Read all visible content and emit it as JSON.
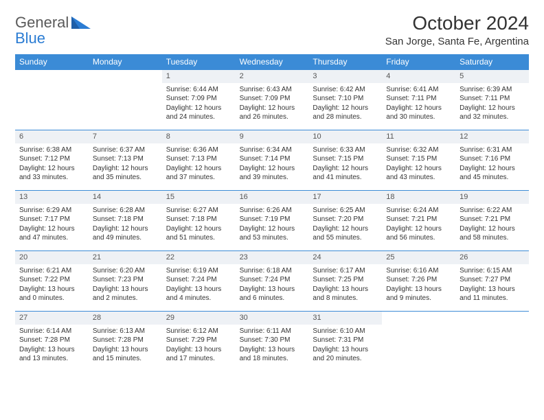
{
  "brand": {
    "word1": "General",
    "word2": "Blue"
  },
  "title": "October 2024",
  "location": "San Jorge, Santa Fe, Argentina",
  "colors": {
    "header_bg": "#3b8bd6",
    "header_fg": "#ffffff",
    "daynum_bg": "#eef1f5",
    "border": "#3b8bd6",
    "logo_gray": "#5a5a5a",
    "logo_blue": "#2b7cd3"
  },
  "layout": {
    "columns": 7
  },
  "day_names": [
    "Sunday",
    "Monday",
    "Tuesday",
    "Wednesday",
    "Thursday",
    "Friday",
    "Saturday"
  ],
  "weeks": [
    [
      {
        "blank": true
      },
      {
        "blank": true
      },
      {
        "n": "1",
        "sunrise": "6:44 AM",
        "sunset": "7:09 PM",
        "dayl1": "Daylight: 12 hours",
        "dayl2": "and 24 minutes."
      },
      {
        "n": "2",
        "sunrise": "6:43 AM",
        "sunset": "7:09 PM",
        "dayl1": "Daylight: 12 hours",
        "dayl2": "and 26 minutes."
      },
      {
        "n": "3",
        "sunrise": "6:42 AM",
        "sunset": "7:10 PM",
        "dayl1": "Daylight: 12 hours",
        "dayl2": "and 28 minutes."
      },
      {
        "n": "4",
        "sunrise": "6:41 AM",
        "sunset": "7:11 PM",
        "dayl1": "Daylight: 12 hours",
        "dayl2": "and 30 minutes."
      },
      {
        "n": "5",
        "sunrise": "6:39 AM",
        "sunset": "7:11 PM",
        "dayl1": "Daylight: 12 hours",
        "dayl2": "and 32 minutes."
      }
    ],
    [
      {
        "n": "6",
        "sunrise": "6:38 AM",
        "sunset": "7:12 PM",
        "dayl1": "Daylight: 12 hours",
        "dayl2": "and 33 minutes."
      },
      {
        "n": "7",
        "sunrise": "6:37 AM",
        "sunset": "7:13 PM",
        "dayl1": "Daylight: 12 hours",
        "dayl2": "and 35 minutes."
      },
      {
        "n": "8",
        "sunrise": "6:36 AM",
        "sunset": "7:13 PM",
        "dayl1": "Daylight: 12 hours",
        "dayl2": "and 37 minutes."
      },
      {
        "n": "9",
        "sunrise": "6:34 AM",
        "sunset": "7:14 PM",
        "dayl1": "Daylight: 12 hours",
        "dayl2": "and 39 minutes."
      },
      {
        "n": "10",
        "sunrise": "6:33 AM",
        "sunset": "7:15 PM",
        "dayl1": "Daylight: 12 hours",
        "dayl2": "and 41 minutes."
      },
      {
        "n": "11",
        "sunrise": "6:32 AM",
        "sunset": "7:15 PM",
        "dayl1": "Daylight: 12 hours",
        "dayl2": "and 43 minutes."
      },
      {
        "n": "12",
        "sunrise": "6:31 AM",
        "sunset": "7:16 PM",
        "dayl1": "Daylight: 12 hours",
        "dayl2": "and 45 minutes."
      }
    ],
    [
      {
        "n": "13",
        "sunrise": "6:29 AM",
        "sunset": "7:17 PM",
        "dayl1": "Daylight: 12 hours",
        "dayl2": "and 47 minutes."
      },
      {
        "n": "14",
        "sunrise": "6:28 AM",
        "sunset": "7:18 PM",
        "dayl1": "Daylight: 12 hours",
        "dayl2": "and 49 minutes."
      },
      {
        "n": "15",
        "sunrise": "6:27 AM",
        "sunset": "7:18 PM",
        "dayl1": "Daylight: 12 hours",
        "dayl2": "and 51 minutes."
      },
      {
        "n": "16",
        "sunrise": "6:26 AM",
        "sunset": "7:19 PM",
        "dayl1": "Daylight: 12 hours",
        "dayl2": "and 53 minutes."
      },
      {
        "n": "17",
        "sunrise": "6:25 AM",
        "sunset": "7:20 PM",
        "dayl1": "Daylight: 12 hours",
        "dayl2": "and 55 minutes."
      },
      {
        "n": "18",
        "sunrise": "6:24 AM",
        "sunset": "7:21 PM",
        "dayl1": "Daylight: 12 hours",
        "dayl2": "and 56 minutes."
      },
      {
        "n": "19",
        "sunrise": "6:22 AM",
        "sunset": "7:21 PM",
        "dayl1": "Daylight: 12 hours",
        "dayl2": "and 58 minutes."
      }
    ],
    [
      {
        "n": "20",
        "sunrise": "6:21 AM",
        "sunset": "7:22 PM",
        "dayl1": "Daylight: 13 hours",
        "dayl2": "and 0 minutes."
      },
      {
        "n": "21",
        "sunrise": "6:20 AM",
        "sunset": "7:23 PM",
        "dayl1": "Daylight: 13 hours",
        "dayl2": "and 2 minutes."
      },
      {
        "n": "22",
        "sunrise": "6:19 AM",
        "sunset": "7:24 PM",
        "dayl1": "Daylight: 13 hours",
        "dayl2": "and 4 minutes."
      },
      {
        "n": "23",
        "sunrise": "6:18 AM",
        "sunset": "7:24 PM",
        "dayl1": "Daylight: 13 hours",
        "dayl2": "and 6 minutes."
      },
      {
        "n": "24",
        "sunrise": "6:17 AM",
        "sunset": "7:25 PM",
        "dayl1": "Daylight: 13 hours",
        "dayl2": "and 8 minutes."
      },
      {
        "n": "25",
        "sunrise": "6:16 AM",
        "sunset": "7:26 PM",
        "dayl1": "Daylight: 13 hours",
        "dayl2": "and 9 minutes."
      },
      {
        "n": "26",
        "sunrise": "6:15 AM",
        "sunset": "7:27 PM",
        "dayl1": "Daylight: 13 hours",
        "dayl2": "and 11 minutes."
      }
    ],
    [
      {
        "n": "27",
        "sunrise": "6:14 AM",
        "sunset": "7:28 PM",
        "dayl1": "Daylight: 13 hours",
        "dayl2": "and 13 minutes."
      },
      {
        "n": "28",
        "sunrise": "6:13 AM",
        "sunset": "7:28 PM",
        "dayl1": "Daylight: 13 hours",
        "dayl2": "and 15 minutes."
      },
      {
        "n": "29",
        "sunrise": "6:12 AM",
        "sunset": "7:29 PM",
        "dayl1": "Daylight: 13 hours",
        "dayl2": "and 17 minutes."
      },
      {
        "n": "30",
        "sunrise": "6:11 AM",
        "sunset": "7:30 PM",
        "dayl1": "Daylight: 13 hours",
        "dayl2": "and 18 minutes."
      },
      {
        "n": "31",
        "sunrise": "6:10 AM",
        "sunset": "7:31 PM",
        "dayl1": "Daylight: 13 hours",
        "dayl2": "and 20 minutes."
      },
      {
        "blank": true
      },
      {
        "blank": true
      }
    ]
  ],
  "labels": {
    "sunrise": "Sunrise: ",
    "sunset": "Sunset: "
  }
}
